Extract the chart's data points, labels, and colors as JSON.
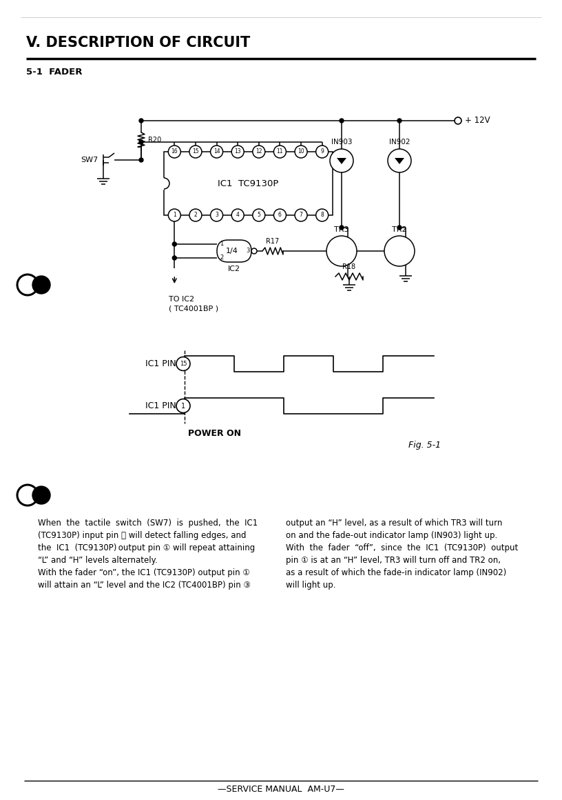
{
  "title": "V. DESCRIPTION OF CIRCUIT",
  "subtitle": "5-1  FADER",
  "footer": "—SERVICE MANUAL  AM-U7—",
  "bg_color": "#ffffff",
  "text_color": "#000000",
  "body_text_col1": "When  the  tactile  switch  (SW7)  is  pushed,  the  IC1\n(TC9130P) input pin ⓔ will detect falling edges, and\nthe  IC1  (TC9130P) output pin ① will repeat attaining\n“L” and “H” levels alternately.\nWith the fader “on”, the IC1 (TC9130P) output pin ①\nwill attain an “L” level and the IC2 (TC4001BP) pin ③",
  "body_text_col2": "output an “H” level, as a result of which TR3 will turn\non and the fade-out indicator lamp (IN903) light up.\nWith  the  fader  “off”,  since  the  IC1  (TC9130P)  output\npin ① is at an “H” level, TR3 will turn off and TR2 on,\nas a result of which the fade-in indicator lamp (IN902)\nwill light up."
}
